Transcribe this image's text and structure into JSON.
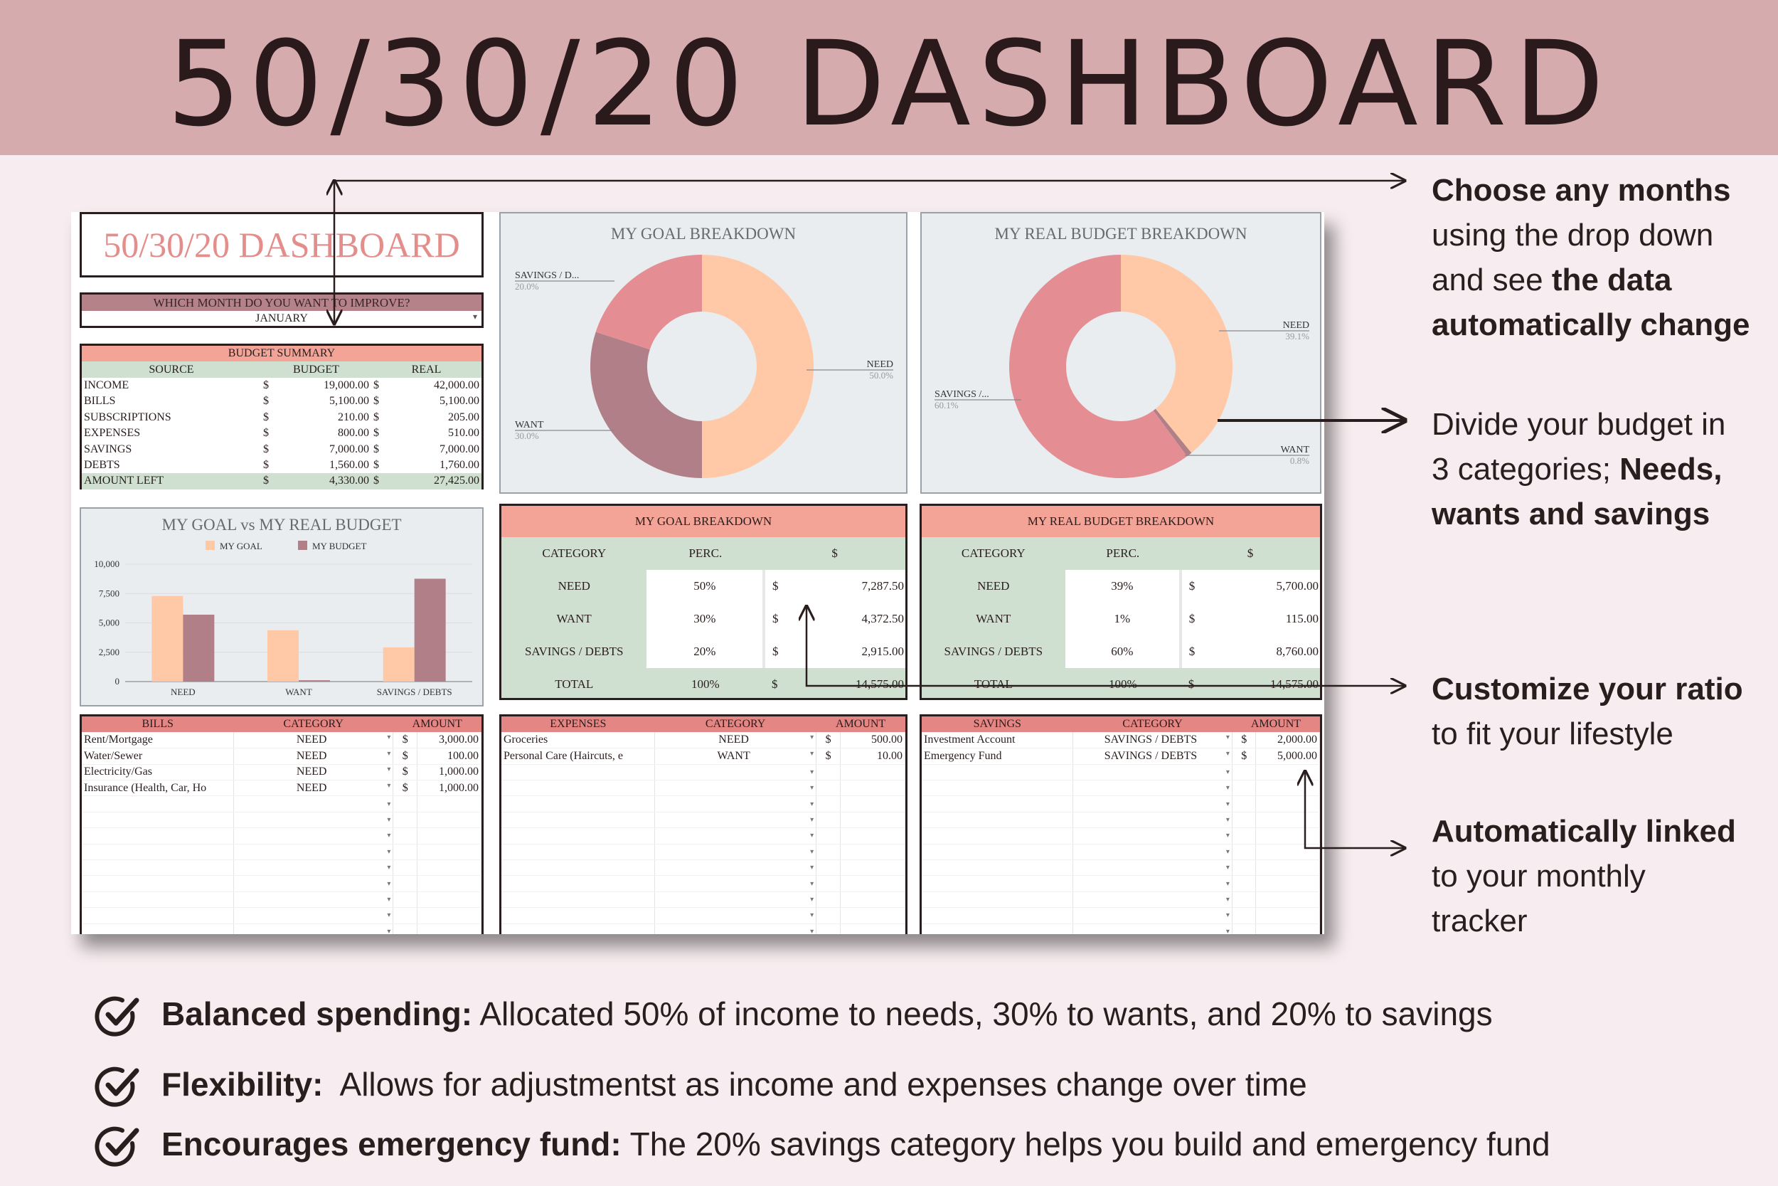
{
  "banner": {
    "title": "50/30/20 DASHBOARD"
  },
  "sheet": {
    "title": "50/30/20 DASHBOARD",
    "month_question": "WHICH MONTH DO YOU WANT TO IMPROVE?",
    "month_value": "JANUARY",
    "summary": {
      "title": "BUDGET SUMMARY",
      "headers": [
        "SOURCE",
        "BUDGET",
        "REAL"
      ],
      "currency": "$",
      "rows": [
        {
          "source": "INCOME",
          "budget": "19,000.00",
          "real": "42,000.00"
        },
        {
          "source": "BILLS",
          "budget": "5,100.00",
          "real": "5,100.00"
        },
        {
          "source": "SUBSCRIPTIONS",
          "budget": "210.00",
          "real": "205.00"
        },
        {
          "source": "EXPENSES",
          "budget": "800.00",
          "real": "510.00"
        },
        {
          "source": "SAVINGS",
          "budget": "7,000.00",
          "real": "7,000.00"
        },
        {
          "source": "DEBTS",
          "budget": "1,560.00",
          "real": "1,760.00"
        },
        {
          "source": "AMOUNT LEFT",
          "budget": "4,330.00",
          "real": "27,425.00"
        }
      ]
    },
    "goal_donut": {
      "title": "MY GOAL BREAKDOWN",
      "labels": {
        "savings": "SAVINGS / D...",
        "savings_pct": "20.0%",
        "need": "NEED",
        "need_pct": "50.0%",
        "want": "WANT",
        "want_pct": "30.0%"
      }
    },
    "real_donut": {
      "title": "MY REAL BUDGET BREAKDOWN",
      "labels": {
        "need": "NEED",
        "need_pct": "39.1%",
        "savings": "SAVINGS /...",
        "savings_pct": "60.1%",
        "want": "WANT",
        "want_pct": "0.8%"
      }
    },
    "goal_table": {
      "title": "MY GOAL BREAKDOWN",
      "headers": [
        "CATEGORY",
        "PERC.",
        "$"
      ],
      "rows": [
        {
          "cat": "NEED",
          "perc": "50%",
          "cur": "$",
          "amt": "7,287.50"
        },
        {
          "cat": "WANT",
          "perc": "30%",
          "cur": "$",
          "amt": "4,372.50"
        },
        {
          "cat": "SAVINGS / DEBTS",
          "perc": "20%",
          "cur": "$",
          "amt": "2,915.00"
        }
      ],
      "total": {
        "cat": "TOTAL",
        "perc": "100%",
        "cur": "$",
        "amt": "14,575.00"
      }
    },
    "real_table": {
      "title": "MY REAL BUDGET BREAKDOWN",
      "headers": [
        "CATEGORY",
        "PERC.",
        "$"
      ],
      "rows": [
        {
          "cat": "NEED",
          "perc": "39%",
          "cur": "$",
          "amt": "5,700.00"
        },
        {
          "cat": "WANT",
          "perc": "1%",
          "cur": "$",
          "amt": "115.00"
        },
        {
          "cat": "SAVINGS / DEBTS",
          "perc": "60%",
          "cur": "$",
          "amt": "8,760.00"
        }
      ],
      "total": {
        "cat": "TOTAL",
        "perc": "100%",
        "cur": "$",
        "amt": "14,575.00"
      }
    },
    "bills": {
      "headers": [
        "BILLS",
        "CATEGORY",
        "AMOUNT"
      ],
      "rows": [
        {
          "name": "Rent/Mortgage",
          "cat": "NEED",
          "cur": "$",
          "amt": "3,000.00"
        },
        {
          "name": "Water/Sewer",
          "cat": "NEED",
          "cur": "$",
          "amt": "100.00"
        },
        {
          "name": "Electricity/Gas",
          "cat": "NEED",
          "cur": "$",
          "amt": "1,000.00"
        },
        {
          "name": "Insurance (Health, Car, Ho",
          "cat": "NEED",
          "cur": "$",
          "amt": "1,000.00"
        }
      ]
    },
    "expenses": {
      "headers": [
        "EXPENSES",
        "CATEGORY",
        "AMOUNT"
      ],
      "rows": [
        {
          "name": "Groceries",
          "cat": "NEED",
          "cur": "$",
          "amt": "500.00"
        },
        {
          "name": "Personal Care (Haircuts, e",
          "cat": "WANT",
          "cur": "$",
          "amt": "10.00"
        }
      ]
    },
    "savings": {
      "headers": [
        "SAVINGS",
        "CATEGORY",
        "AMOUNT"
      ],
      "rows": [
        {
          "name": "Investment Account",
          "cat": "SAVINGS / DEBTS",
          "cur": "$",
          "amt": "2,000.00"
        },
        {
          "name": "Emergency Fund",
          "cat": "SAVINGS / DEBTS",
          "cur": "$",
          "amt": "5,000.00"
        }
      ]
    }
  },
  "annotations": {
    "a1": {
      "p1": "Choose any months",
      "p2": "using the drop down",
      "p3": "and see ",
      "p4": "the data",
      "p5": "automatically change"
    },
    "a2": {
      "p1": "Divide your budget in",
      "p2": "3 categories; ",
      "p3": "Needs,",
      "p4": "wants and savings"
    },
    "a3": {
      "p1": "Customize your ratio",
      "p2": "to fit your lifestyle"
    },
    "a4": {
      "p1": "Automatically linked",
      "p2": "to your monthly",
      "p3": "tracker"
    }
  },
  "bullets": [
    {
      "bold": "Balanced spending:",
      "text": " Allocated 50% of income to needs, 30% to wants, and 20% to savings"
    },
    {
      "bold": "Flexibility:",
      "text": "  Allows for adjustmentst as income and expenses change over time"
    },
    {
      "bold": "Encourages emergency fund:",
      "text": " The 20% savings category helps you build and emergency fund"
    }
  ],
  "colors": {
    "banner": "#d6abae",
    "need": "#ffc9a8",
    "want": "#b07f88",
    "savings": "#e48e94",
    "header_peach": "#f3a497",
    "header_green": "#cfe0d0"
  },
  "chart_data": {
    "type": "bar",
    "title": "MY GOAL vs MY REAL BUDGET",
    "categories": [
      "NEED",
      "WANT",
      "SAVINGS / DEBTS"
    ],
    "series": [
      {
        "name": "MY GOAL",
        "values": [
          7287.5,
          4372.5,
          2915
        ],
        "color": "#ffc9a8"
      },
      {
        "name": "MY BUDGET",
        "values": [
          5700,
          115,
          8760
        ],
        "color": "#b07f88"
      }
    ],
    "yticks": [
      "10,000",
      "7,500",
      "5,000",
      "2,500",
      "0"
    ],
    "ylim": [
      0,
      10000
    ],
    "legend": "top"
  }
}
